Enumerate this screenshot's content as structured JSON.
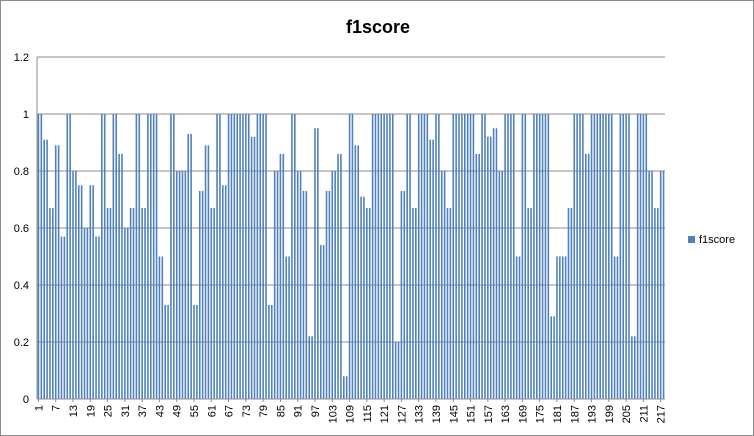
{
  "chart_data": {
    "type": "bar",
    "title": "f1score",
    "xlabel": "",
    "ylabel": "",
    "ylim": [
      0,
      1.2
    ],
    "yticks": [
      "0",
      "0.2",
      "0.4",
      "0.6",
      "0.8",
      "1",
      "1.2"
    ],
    "ytick_values": [
      0,
      0.2,
      0.4,
      0.6,
      0.8,
      1,
      1.2
    ],
    "x_tick_labels": [
      "1",
      "7",
      "13",
      "19",
      "25",
      "31",
      "37",
      "43",
      "49",
      "55",
      "61",
      "67",
      "73",
      "79",
      "85",
      "91",
      "97",
      "103",
      "109",
      "115",
      "121",
      "127",
      "133",
      "139",
      "145",
      "151",
      "157",
      "163",
      "169",
      "175",
      "181",
      "187",
      "193",
      "199",
      "205",
      "211",
      "217"
    ],
    "x_tick_every": 6,
    "grid": "horizontal",
    "legend_position": "right",
    "series": [
      {
        "name": "f1score",
        "color": "#4f81bd",
        "values": [
          1,
          1,
          0.91,
          0.91,
          0.67,
          0.67,
          0.89,
          0.89,
          0.57,
          0.57,
          1,
          1,
          0.8,
          0.8,
          0.75,
          0.75,
          0.6,
          0.6,
          0.75,
          0.75,
          0.57,
          0.57,
          1,
          1,
          0.67,
          0.67,
          1,
          1,
          0.86,
          0.86,
          0.6,
          0.6,
          0.67,
          0.67,
          1,
          1,
          0.67,
          0.67,
          1,
          1,
          1,
          1,
          0.5,
          0.5,
          0.33,
          0.33,
          1,
          1,
          0.8,
          0.8,
          0.8,
          0.8,
          0.93,
          0.93,
          0.33,
          0.33,
          0.73,
          0.73,
          0.89,
          0.89,
          0.67,
          0.67,
          1,
          1,
          0.75,
          0.75,
          1,
          1,
          1,
          1,
          1,
          1,
          1,
          1,
          0.92,
          0.92,
          1,
          1,
          1,
          1,
          0.33,
          0.33,
          0.8,
          0.8,
          0.86,
          0.86,
          0.5,
          0.5,
          1,
          1,
          0.8,
          0.8,
          0.73,
          0.73,
          0.22,
          0.22,
          0.95,
          0.95,
          0.54,
          0.54,
          0.73,
          0.73,
          0.8,
          0.8,
          0.86,
          0.86,
          0.08,
          0.08,
          1,
          1,
          0.89,
          0.89,
          0.71,
          0.71,
          0.67,
          0.67,
          1,
          1,
          1,
          1,
          1,
          1,
          1,
          1,
          0.2,
          0.2,
          0.73,
          0.73,
          1,
          1,
          0.67,
          0.67,
          1,
          1,
          1,
          1,
          0.91,
          0.91,
          1,
          1,
          0.8,
          0.8,
          0.67,
          0.67,
          1,
          1,
          1,
          1,
          1,
          1,
          1,
          1,
          0.86,
          0.86,
          1,
          1,
          0.92,
          0.92,
          0.95,
          0.95,
          0.8,
          0.8,
          1,
          1,
          1,
          1,
          0.5,
          0.5,
          1,
          1,
          0.67,
          0.67,
          1,
          1,
          1,
          1,
          1,
          1,
          0.29,
          0.29,
          0.5,
          0.5,
          0.5,
          0.5,
          0.67,
          0.67,
          1,
          1,
          1,
          1,
          0.86,
          0.86,
          1,
          1,
          1,
          1,
          1,
          1,
          1,
          1,
          0.5,
          0.5,
          1,
          1,
          1,
          1,
          0.22,
          0.22,
          1,
          1,
          1,
          1,
          0.8,
          0.8,
          0.67,
          0.67,
          0.8,
          0.8
        ]
      }
    ]
  }
}
